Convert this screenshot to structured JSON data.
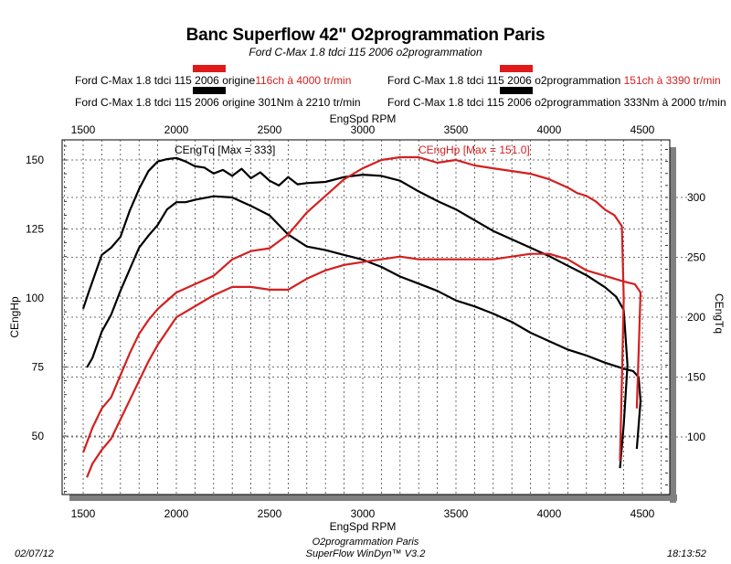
{
  "chart_data": {
    "type": "line",
    "title": "Banc Superflow 42\" O2programmation Paris",
    "subtitle": "Ford C-Max 1.8 tdci 115 2006 o2programmation",
    "xlabel": "EngSpd RPM",
    "ylabel_left": "CEngHp",
    "ylabel_right": "CEngTq",
    "xlim": [
      1380,
      4650
    ],
    "ylim_left": [
      29,
      158
    ],
    "ylim_right": [
      49,
      346
    ],
    "x_ticks": [
      "1500",
      "2000",
      "2500",
      "3000",
      "3500",
      "4000",
      "4500"
    ],
    "y_left_ticks": [
      "50",
      "75",
      "100",
      "125",
      "150"
    ],
    "y_right_ticks": [
      "100",
      "150",
      "200",
      "250",
      "300"
    ],
    "grid": true,
    "annotations": {
      "torque_max": "CEngTq [Max = 333]",
      "power_max": "CEngHp [Max = 151.0]"
    },
    "series": [
      {
        "name": "Ford C-Max 1.8 tdci 115 2006 o2programmation (Tq)",
        "axis": "right",
        "color": "#000000",
        "x": [
          1500,
          1530,
          1600,
          1650,
          1700,
          1750,
          1800,
          1850,
          1900,
          1950,
          2000,
          2050,
          2100,
          2150,
          2200,
          2250,
          2300,
          2350,
          2400,
          2450,
          2500,
          2550,
          2600,
          2650,
          2700,
          2800,
          2900,
          3000,
          3100,
          3200,
          3300,
          3400,
          3500,
          3600,
          3700,
          3800,
          3900,
          4000,
          4100,
          4200,
          4300,
          4360,
          4400,
          4420,
          4400,
          4380
        ],
        "y": [
          207,
          221,
          252,
          258,
          267,
          289,
          307,
          322,
          330,
          332,
          333,
          330,
          326,
          325,
          320,
          323,
          318,
          324,
          316,
          321,
          314,
          310,
          317,
          311,
          312,
          313,
          317,
          319,
          318,
          314,
          305,
          297,
          290,
          281,
          272,
          265,
          258,
          251,
          243,
          235,
          225,
          217,
          206,
          160,
          110,
          74
        ]
      },
      {
        "name": "Ford C-Max 1.8 tdci 115 2006 origine (Tq)",
        "axis": "right",
        "color": "#000000",
        "x": [
          1520,
          1550,
          1600,
          1650,
          1700,
          1750,
          1800,
          1850,
          1900,
          1950,
          2000,
          2050,
          2100,
          2200,
          2300,
          2400,
          2500,
          2600,
          2700,
          2800,
          2900,
          3000,
          3100,
          3200,
          3300,
          3400,
          3500,
          3600,
          3700,
          3800,
          3900,
          4000,
          4100,
          4200,
          4300,
          4400,
          4450,
          4480,
          4490,
          4470
        ],
        "y": [
          158,
          166,
          188,
          202,
          222,
          240,
          258,
          268,
          277,
          290,
          296,
          296,
          298,
          301,
          300,
          293,
          285,
          269,
          259,
          256,
          252,
          248,
          242,
          234,
          228,
          222,
          214,
          209,
          203,
          196,
          187,
          180,
          173,
          168,
          162,
          157,
          155,
          150,
          130,
          90
        ]
      },
      {
        "name": "Ford C-Max 1.8 tdci 115 2006 o2programmation (Hp)",
        "axis": "left",
        "color": "#d41f1f",
        "x": [
          1500,
          1550,
          1600,
          1650,
          1700,
          1750,
          1800,
          1850,
          1900,
          1950,
          2000,
          2100,
          2200,
          2300,
          2400,
          2500,
          2600,
          2700,
          2800,
          2900,
          3000,
          3100,
          3200,
          3300,
          3400,
          3500,
          3600,
          3700,
          3800,
          3900,
          4000,
          4100,
          4150,
          4200,
          4250,
          4300,
          4350,
          4390,
          4400,
          4390,
          4380
        ],
        "y": [
          44,
          53,
          60,
          64,
          72,
          80,
          87,
          92,
          96,
          99,
          102,
          105,
          108,
          114,
          117,
          118,
          123,
          131,
          137,
          143,
          147,
          150,
          151,
          151,
          149,
          150,
          148,
          147,
          146,
          145,
          143,
          140,
          138,
          137,
          135,
          132,
          130,
          126,
          100,
          70,
          41
        ]
      },
      {
        "name": "Ford C-Max 1.8 tdci 115 2006 origine (Hp)",
        "axis": "left",
        "color": "#d41f1f",
        "x": [
          1520,
          1550,
          1600,
          1650,
          1700,
          1750,
          1800,
          1850,
          1900,
          1950,
          2000,
          2100,
          2200,
          2300,
          2400,
          2500,
          2600,
          2700,
          2800,
          2900,
          3000,
          3100,
          3200,
          3300,
          3400,
          3500,
          3600,
          3700,
          3800,
          3900,
          4000,
          4100,
          4200,
          4300,
          4400,
          4460,
          4490,
          4480,
          4470
        ],
        "y": [
          35,
          40,
          45,
          49,
          56,
          63,
          70,
          77,
          83,
          88,
          93,
          97,
          101,
          104,
          104,
          103,
          103,
          107,
          110,
          112,
          113,
          114,
          115,
          114,
          114,
          114,
          114,
          114,
          115,
          116,
          116,
          114,
          110,
          108,
          106,
          105,
          102,
          80,
          60
        ]
      }
    ]
  },
  "legend": [
    {
      "label": "Ford C-Max 1.8 tdci 115 2006 origine",
      "value": "116ch à 4000 tr/min",
      "color": "#e01a1a"
    },
    {
      "label": "Ford C-Max 1.8 tdci 115 2006 origine 301Nm à 2210 tr/min",
      "value": "",
      "color": "#000000"
    },
    {
      "label": "Ford C-Max 1.8 tdci 115 2006 o2programmation",
      "value": "151ch à 3390 tr/min",
      "color": "#e01a1a"
    },
    {
      "label": "Ford C-Max 1.8 tdci 115 2006 o2programmation 333Nm à 2000 tr/min",
      "value": "",
      "color": "#000000"
    }
  ],
  "footer": {
    "date": "02/07/12",
    "line1": "O2programmation Paris",
    "line2": "SuperFlow WinDyn™ V3.2",
    "time": "18:13:52"
  }
}
